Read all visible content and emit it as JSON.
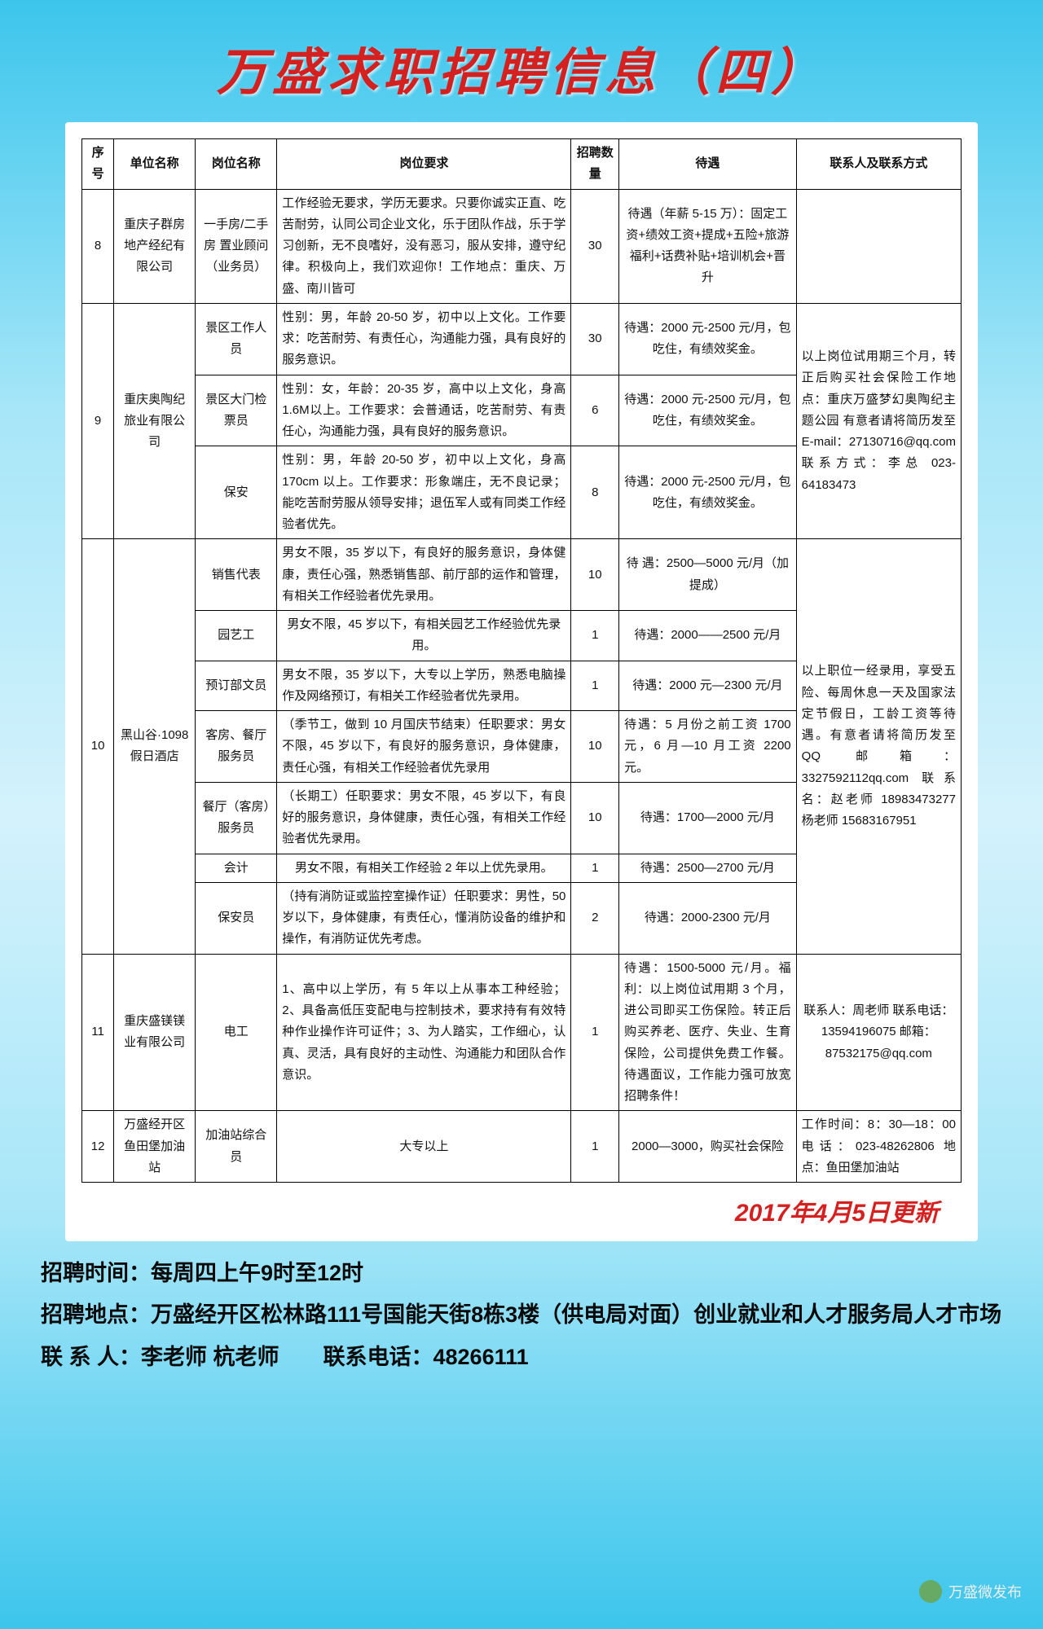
{
  "title": "万盛求职招聘信息（四）",
  "headers": {
    "seq": "序号",
    "company": "单位名称",
    "job": "岗位名称",
    "req": "岗位要求",
    "num": "招聘数量",
    "pay": "待遇",
    "contact": "联系人及联系方式"
  },
  "r8": {
    "seq": "8",
    "company": "重庆子群房地产经纪有限公司",
    "job": "一手房/二手房 置业顾问（业务员）",
    "req": "工作经验无要求，学历无要求。只要你诚实正直、吃苦耐劳，认同公司企业文化，乐于团队作战，乐于学习创新，无不良嗜好，没有恶习，服从安排，遵守纪律。积极向上，我们欢迎你！工作地点：重庆、万盛、南川皆可",
    "num": "30",
    "pay": "待遇（年薪 5-15 万）：固定工资+绩效工资+提成+五险+旅游福利+话费补贴+培训机会+晋升",
    "contact": ""
  },
  "r9": {
    "seq": "9",
    "company": "重庆奥陶纪旅业有限公司",
    "contact": "以上岗位试用期三个月，转正后购买社会保险工作地点：重庆万盛梦幻奥陶纪主题公园 有意者请将简历发至 E-mail：27130716@qq.com 联系方式：李总 023-64183473",
    "a": {
      "job": "景区工作人员",
      "req": "性别：男，年龄 20-50 岁，初中以上文化。工作要求：吃苦耐劳、有责任心，沟通能力强，具有良好的服务意识。",
      "num": "30",
      "pay": "待遇：2000 元-2500 元/月，包吃住，有绩效奖金。"
    },
    "b": {
      "job": "景区大门检票员",
      "req": "性别：女，年龄：20-35 岁，高中以上文化，身高 1.6M以上。工作要求：会普通话，吃苦耐劳、有责任心，沟通能力强，具有良好的服务意识。",
      "num": "6",
      "pay": "待遇：2000 元-2500 元/月，包吃住，有绩效奖金。"
    },
    "c": {
      "job": "保安",
      "req": "性别：男，年龄 20-50 岁，初中以上文化，身高 170cm 以上。工作要求：形象端庄，无不良记录；能吃苦耐劳服从领导安排；退伍军人或有同类工作经验者优先。",
      "num": "8",
      "pay": "待遇：2000 元-2500 元/月，包吃住，有绩效奖金。"
    }
  },
  "r10": {
    "seq": "10",
    "company": "黑山谷·1098 假日酒店",
    "contact": "以上职位一经录用，享受五险、每周休息一天及国家法定节假日，工龄工资等待遇。有意者请将简历发至 QQ 邮箱：3327592112qq.com 联系名：赵老师 18983473277 杨老师 15683167951",
    "a": {
      "job": "销售代表",
      "req": "男女不限，35 岁以下，有良好的服务意识，身体健康，责任心强，熟悉销售部、前厅部的运作和管理，有相关工作经验者优先录用。",
      "num": "10",
      "pay": "待 遇：2500—5000 元/月（加提成）"
    },
    "b": {
      "job": "园艺工",
      "req": "男女不限，45 岁以下，有相关园艺工作经验优先录用。",
      "num": "1",
      "pay": "待遇：2000——2500 元/月"
    },
    "c": {
      "job": "预订部文员",
      "req": "男女不限，35 岁以下，大专以上学历，熟悉电脑操作及网络预订，有相关工作经验者优先录用。",
      "num": "1",
      "pay": "待遇：2000 元—2300 元/月"
    },
    "d": {
      "job": "客房、餐厅服务员",
      "req": "（季节工，做到 10 月国庆节结束）任职要求：男女不限，45 岁以下，有良好的服务意识，身体健康，责任心强，有相关工作经验者优先录用",
      "num": "10",
      "pay": "待遇：5 月份之前工资 1700 元，6 月—10 月工资 2200 元。"
    },
    "e": {
      "job": "餐厅（客房）服务员",
      "req": "（长期工）任职要求：男女不限，45 岁以下，有良好的服务意识，身体健康，责任心强，有相关工作经验者优先录用。",
      "num": "10",
      "pay": "待遇：1700—2000 元/月"
    },
    "f": {
      "job": "会计",
      "req": "男女不限，有相关工作经验 2 年以上优先录用。",
      "num": "1",
      "pay": "待遇：2500—2700 元/月"
    },
    "g": {
      "job": "保安员",
      "req": "（持有消防证或监控室操作证）任职要求：男性，50 岁以下，身体健康，有责任心，懂消防设备的维护和操作，有消防证优先考虑。",
      "num": "2",
      "pay": "待遇：2000-2300 元/月"
    }
  },
  "r11": {
    "seq": "11",
    "company": "重庆盛镁镁业有限公司",
    "job": "电工",
    "req": "1、高中以上学历，有 5 年以上从事本工种经验；2、具备高低压变配电与控制技术，要求持有有效特种作业操作许可证件；3、为人踏实，工作细心，认真、灵活，具有良好的主动性、沟通能力和团队合作意识。",
    "num": "1",
    "pay": "待遇：1500-5000 元/月。福利：以上岗位试用期 3 个月，进公司即买工伤保险。转正后购买养老、医疗、失业、生育保险，公司提供免费工作餐。待遇面议，工作能力强可放宽招聘条件！",
    "contact": "联系人：周老师 联系电话：13594196075 邮箱：87532175@qq.com"
  },
  "r12": {
    "seq": "12",
    "company": "万盛经开区鱼田堡加油站",
    "job": "加油站综合员",
    "req": "大专以上",
    "num": "1",
    "pay": "2000—3000，购买社会保险",
    "contact": "工作时间：8：30—18：00 电话：023-48262806 地点：鱼田堡加油站"
  },
  "updateDate": "2017年4月5日更新",
  "footer": {
    "time": "招聘时间：每周四上午9时至12时",
    "place": "招聘地点：万盛经开区松林路111号国能天街8栋3楼（供电局对面）创业就业和人才服务局人才市场",
    "contact": "联 系 人：李老师 杭老师　　联系电话：48266111"
  },
  "watermark": "万盛微发布"
}
